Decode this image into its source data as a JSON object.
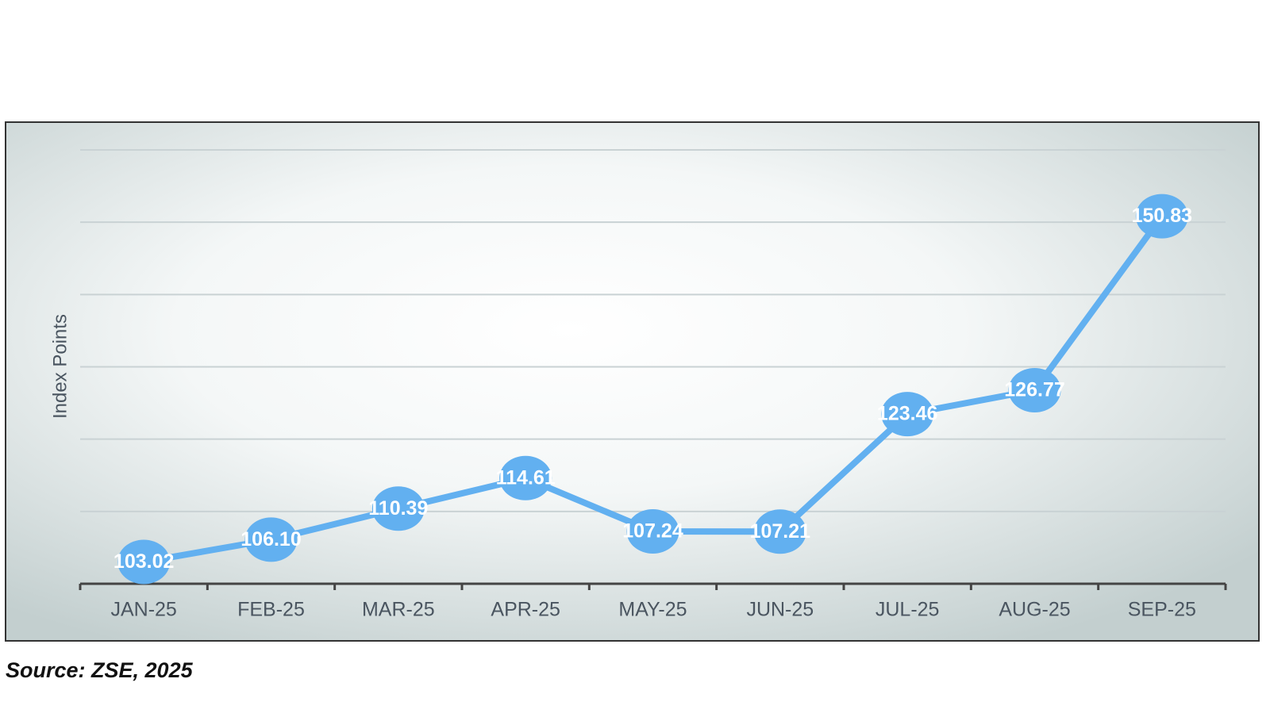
{
  "chart_data": {
    "type": "line",
    "y_label": "Index Points",
    "source": "Source: ZSE, 2025",
    "categories": [
      "JAN-25",
      "FEB-25",
      "MAR-25",
      "APR-25",
      "MAY-25",
      "JUN-25",
      "JUL-25",
      "AUG-25",
      "SEP-25"
    ],
    "values": [
      103.02,
      106.1,
      110.39,
      114.61,
      107.24,
      107.21,
      123.46,
      126.77,
      150.83
    ],
    "value_labels": [
      "103.02",
      "106.10",
      "110.39",
      "114.61",
      "107.24",
      "107.21",
      "123.46",
      "126.77",
      "150.83"
    ],
    "color": "#62b0f0",
    "ylim": [
      100,
      160
    ],
    "yticks": [
      110,
      120,
      130,
      140,
      150,
      160
    ],
    "grid": true
  }
}
